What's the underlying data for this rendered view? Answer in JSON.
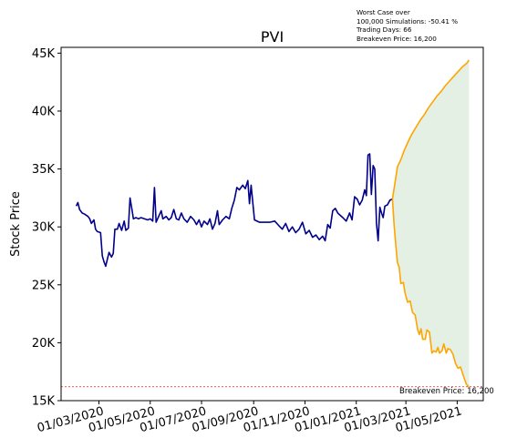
{
  "chart_data": {
    "type": "line",
    "title": "PVI",
    "xlabel": "",
    "ylabel": "Stock Price",
    "ylim": [
      15000,
      45500
    ],
    "xlim": [
      "2020-01-16",
      "2021-06-01"
    ],
    "x_ticks": [
      "2020-03-01",
      "2020-05-01",
      "2020-07-01",
      "2020-09-01",
      "2020-11-01",
      "2021-01-01",
      "2021-03-01",
      "2021-05-01"
    ],
    "x_tick_labels": [
      "01/03/2020",
      "01/05/2020",
      "01/07/2020",
      "01/09/2020",
      "01/11/2020",
      "01/01/2021",
      "01/03/2021",
      "01/05/2021"
    ],
    "y_ticks": [
      15000,
      20000,
      25000,
      30000,
      35000,
      40000,
      45000
    ],
    "y_tick_labels": [
      "15K",
      "20K",
      "25K",
      "30K",
      "35K",
      "40K",
      "45K"
    ],
    "grid": false,
    "series": [
      {
        "kind": "history",
        "color": "#00008b",
        "points": [
          [
            "2020-02-03",
            31800
          ],
          [
            "2020-02-05",
            32100
          ],
          [
            "2020-02-07",
            31500
          ],
          [
            "2020-02-10",
            31200
          ],
          [
            "2020-02-13",
            31100
          ],
          [
            "2020-02-17",
            30900
          ],
          [
            "2020-02-19",
            30700
          ],
          [
            "2020-02-21",
            30300
          ],
          [
            "2020-02-24",
            30600
          ],
          [
            "2020-02-26",
            29800
          ],
          [
            "2020-02-28",
            29600
          ],
          [
            "2020-03-03",
            29500
          ],
          [
            "2020-03-05",
            27500
          ],
          [
            "2020-03-07",
            27000
          ],
          [
            "2020-03-09",
            26600
          ],
          [
            "2020-03-11",
            27200
          ],
          [
            "2020-03-13",
            27800
          ],
          [
            "2020-03-16",
            27400
          ],
          [
            "2020-03-18",
            27700
          ],
          [
            "2020-03-20",
            29800
          ],
          [
            "2020-03-23",
            29800
          ],
          [
            "2020-03-25",
            30300
          ],
          [
            "2020-03-28",
            29700
          ],
          [
            "2020-03-31",
            30500
          ],
          [
            "2020-04-02",
            29700
          ],
          [
            "2020-04-05",
            29900
          ],
          [
            "2020-04-07",
            32500
          ],
          [
            "2020-04-09",
            31600
          ],
          [
            "2020-04-11",
            30700
          ],
          [
            "2020-04-14",
            30800
          ],
          [
            "2020-04-17",
            30700
          ],
          [
            "2020-04-20",
            30800
          ],
          [
            "2020-04-24",
            30700
          ],
          [
            "2020-04-28",
            30600
          ],
          [
            "2020-05-01",
            30700
          ],
          [
            "2020-05-04",
            30500
          ],
          [
            "2020-05-06",
            33400
          ],
          [
            "2020-05-08",
            30400
          ],
          [
            "2020-05-11",
            30900
          ],
          [
            "2020-05-14",
            31400
          ],
          [
            "2020-05-16",
            30700
          ],
          [
            "2020-05-20",
            30900
          ],
          [
            "2020-05-23",
            30600
          ],
          [
            "2020-05-26",
            30800
          ],
          [
            "2020-05-29",
            31500
          ],
          [
            "2020-06-01",
            30700
          ],
          [
            "2020-06-04",
            30600
          ],
          [
            "2020-06-07",
            31200
          ],
          [
            "2020-06-10",
            30700
          ],
          [
            "2020-06-14",
            30400
          ],
          [
            "2020-06-18",
            30900
          ],
          [
            "2020-06-22",
            30600
          ],
          [
            "2020-06-25",
            30200
          ],
          [
            "2020-06-28",
            30600
          ],
          [
            "2020-07-01",
            30000
          ],
          [
            "2020-07-04",
            30500
          ],
          [
            "2020-07-08",
            30200
          ],
          [
            "2020-07-11",
            30700
          ],
          [
            "2020-07-14",
            29800
          ],
          [
            "2020-07-17",
            30300
          ],
          [
            "2020-07-20",
            31400
          ],
          [
            "2020-07-22",
            30200
          ],
          [
            "2020-07-26",
            30600
          ],
          [
            "2020-07-30",
            30900
          ],
          [
            "2020-08-03",
            30700
          ],
          [
            "2020-08-06",
            31600
          ],
          [
            "2020-08-09",
            32300
          ],
          [
            "2020-08-12",
            33400
          ],
          [
            "2020-08-15",
            33200
          ],
          [
            "2020-08-19",
            33600
          ],
          [
            "2020-08-22",
            33300
          ],
          [
            "2020-08-25",
            34000
          ],
          [
            "2020-08-27",
            32000
          ],
          [
            "2020-08-29",
            33600
          ],
          [
            "2020-09-02",
            30600
          ],
          [
            "2020-09-08",
            30400
          ],
          [
            "2020-09-14",
            30400
          ],
          [
            "2020-09-20",
            30400
          ],
          [
            "2020-09-26",
            30500
          ],
          [
            "2020-10-01",
            30100
          ],
          [
            "2020-10-05",
            29800
          ],
          [
            "2020-10-09",
            30300
          ],
          [
            "2020-10-13",
            29600
          ],
          [
            "2020-10-17",
            30000
          ],
          [
            "2020-10-21",
            29500
          ],
          [
            "2020-10-25",
            29800
          ],
          [
            "2020-10-29",
            30400
          ],
          [
            "2020-11-02",
            29400
          ],
          [
            "2020-11-06",
            29700
          ],
          [
            "2020-11-10",
            29100
          ],
          [
            "2020-11-14",
            29300
          ],
          [
            "2020-11-18",
            28900
          ],
          [
            "2020-11-22",
            29200
          ],
          [
            "2020-11-25",
            28800
          ],
          [
            "2020-11-28",
            30200
          ],
          [
            "2020-12-01",
            29900
          ],
          [
            "2020-12-04",
            31400
          ],
          [
            "2020-12-07",
            31600
          ],
          [
            "2020-12-10",
            31200
          ],
          [
            "2020-12-13",
            31000
          ],
          [
            "2020-12-16",
            30800
          ],
          [
            "2020-12-20",
            30500
          ],
          [
            "2020-12-24",
            31200
          ],
          [
            "2020-12-27",
            30600
          ],
          [
            "2020-12-30",
            32600
          ],
          [
            "2021-01-02",
            32400
          ],
          [
            "2021-01-05",
            31900
          ],
          [
            "2021-01-08",
            32300
          ],
          [
            "2021-01-11",
            33200
          ],
          [
            "2021-01-13",
            32700
          ],
          [
            "2021-01-15",
            36200
          ],
          [
            "2021-01-17",
            36300
          ],
          [
            "2021-01-19",
            32800
          ],
          [
            "2021-01-21",
            35300
          ],
          [
            "2021-01-23",
            35000
          ],
          [
            "2021-01-25",
            30300
          ],
          [
            "2021-01-27",
            28800
          ],
          [
            "2021-01-29",
            31700
          ],
          [
            "2021-01-31",
            31200
          ],
          [
            "2021-02-02",
            30800
          ],
          [
            "2021-02-04",
            31800
          ],
          [
            "2021-02-07",
            31900
          ],
          [
            "2021-02-10",
            32300
          ],
          [
            "2021-02-13",
            32400
          ]
        ]
      },
      {
        "kind": "simulation-upper",
        "color": "#ffa500",
        "points": [
          [
            "2021-02-13",
            32400
          ],
          [
            "2021-02-16",
            33800
          ],
          [
            "2021-02-19",
            35200
          ],
          [
            "2021-02-23",
            35800
          ],
          [
            "2021-02-27",
            36600
          ],
          [
            "2021-03-04",
            37400
          ],
          [
            "2021-03-08",
            38000
          ],
          [
            "2021-03-13",
            38600
          ],
          [
            "2021-03-18",
            39200
          ],
          [
            "2021-03-23",
            39700
          ],
          [
            "2021-03-28",
            40300
          ],
          [
            "2021-04-02",
            40800
          ],
          [
            "2021-04-07",
            41300
          ],
          [
            "2021-04-12",
            41700
          ],
          [
            "2021-04-17",
            42200
          ],
          [
            "2021-04-22",
            42600
          ],
          [
            "2021-04-27",
            43000
          ],
          [
            "2021-05-02",
            43400
          ],
          [
            "2021-05-07",
            43800
          ],
          [
            "2021-05-12",
            44100
          ],
          [
            "2021-05-15",
            44400
          ]
        ]
      },
      {
        "kind": "simulation-lower",
        "color": "#ffa500",
        "points": [
          [
            "2021-02-13",
            32400
          ],
          [
            "2021-02-15",
            30200
          ],
          [
            "2021-02-17",
            28400
          ],
          [
            "2021-02-19",
            26900
          ],
          [
            "2021-02-21",
            26500
          ],
          [
            "2021-02-23",
            25100
          ],
          [
            "2021-02-26",
            25200
          ],
          [
            "2021-02-28",
            24300
          ],
          [
            "2021-03-03",
            23500
          ],
          [
            "2021-03-06",
            23600
          ],
          [
            "2021-03-09",
            22600
          ],
          [
            "2021-03-12",
            22400
          ],
          [
            "2021-03-15",
            21100
          ],
          [
            "2021-03-17",
            20700
          ],
          [
            "2021-03-19",
            21200
          ],
          [
            "2021-03-21",
            20300
          ],
          [
            "2021-03-24",
            20300
          ],
          [
            "2021-03-26",
            21100
          ],
          [
            "2021-03-29",
            20900
          ],
          [
            "2021-04-01",
            19100
          ],
          [
            "2021-04-03",
            19300
          ],
          [
            "2021-04-06",
            19200
          ],
          [
            "2021-04-08",
            19600
          ],
          [
            "2021-04-10",
            19100
          ],
          [
            "2021-04-13",
            19300
          ],
          [
            "2021-04-15",
            19900
          ],
          [
            "2021-04-18",
            19100
          ],
          [
            "2021-04-20",
            19500
          ],
          [
            "2021-04-23",
            19400
          ],
          [
            "2021-04-26",
            19000
          ],
          [
            "2021-04-29",
            18200
          ],
          [
            "2021-05-02",
            17800
          ],
          [
            "2021-05-05",
            17900
          ],
          [
            "2021-05-09",
            17000
          ],
          [
            "2021-05-12",
            16400
          ],
          [
            "2021-05-15",
            16200
          ]
        ]
      }
    ],
    "fill_color": "#e3f0e3",
    "breakeven": {
      "value": 16200,
      "label": "Breakeven Price: 16,200",
      "color": "#d62728"
    },
    "annotation": [
      "Worst Case over",
      "100,000 Simulations: -50.41 %",
      "Trading Days: 66",
      "Breakeven Price: 16,200"
    ]
  }
}
